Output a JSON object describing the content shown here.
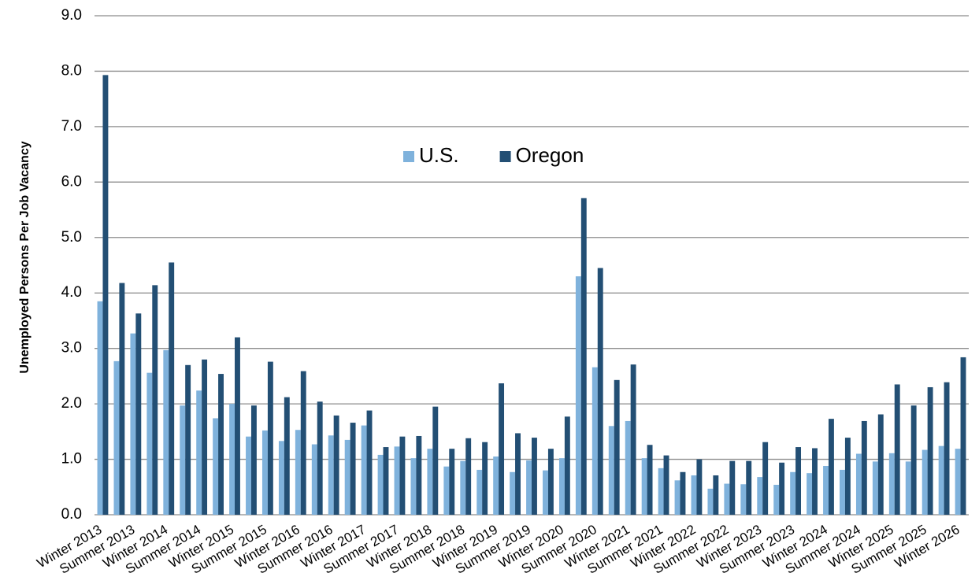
{
  "chart_data": {
    "type": "bar",
    "y_label": "Unemployed Persons Per Job Vacancy",
    "categories": [
      "Winter 2013",
      null,
      "Summer 2013",
      null,
      "Winter 2014",
      null,
      "Summer 2014",
      null,
      "Winter 2015",
      null,
      "Summer 2015",
      null,
      "Winter 2016",
      null,
      "Summer 2016",
      null,
      "Winter 2017",
      null,
      "Summer 2017",
      null,
      "Winter 2018",
      null,
      "Summer 2018",
      null,
      "Winter 2019",
      null,
      "Summer 2019",
      null,
      "Winter 2020",
      null,
      "Summer 2020",
      null,
      "Winter 2021",
      null,
      "Summer 2021",
      null,
      "Winter 2022",
      null,
      "Summer 2022",
      null,
      "Winter 2023",
      null,
      "Summer 2023",
      null,
      "Winter 2024",
      null,
      "Summer 2024",
      null,
      "Winter 2025",
      null,
      "Summer 2025",
      null,
      "Winter 2026"
    ],
    "series": [
      {
        "name": "U.S.",
        "color": "#7fb2dc",
        "values": [
          3.85,
          2.77,
          3.27,
          2.56,
          2.97,
          1.97,
          2.24,
          1.74,
          2.0,
          1.41,
          1.52,
          1.33,
          1.53,
          1.27,
          1.43,
          1.35,
          1.61,
          1.08,
          1.23,
          1.02,
          1.19,
          0.87,
          0.97,
          0.81,
          1.05,
          0.77,
          0.98,
          0.8,
          1.02,
          4.3,
          2.66,
          1.6,
          1.69,
          1.02,
          0.84,
          0.62,
          0.71,
          0.47,
          0.56,
          0.55,
          0.68,
          0.54,
          0.77,
          0.75,
          0.88,
          0.81,
          1.1,
          0.96,
          1.11,
          0.96,
          1.17,
          1.24,
          1.19
        ]
      },
      {
        "name": "Oregon",
        "color": "#234f74",
        "values": [
          7.93,
          4.18,
          3.63,
          4.14,
          4.55,
          2.7,
          2.8,
          2.54,
          3.2,
          1.97,
          2.76,
          2.12,
          2.59,
          2.04,
          1.79,
          1.66,
          1.88,
          1.22,
          1.41,
          1.42,
          1.95,
          1.19,
          1.38,
          1.31,
          2.37,
          1.47,
          1.39,
          1.19,
          1.77,
          5.71,
          4.45,
          2.43,
          2.71,
          1.26,
          1.07,
          0.77,
          1.0,
          0.71,
          0.97,
          0.97,
          1.31,
          0.94,
          1.22,
          1.2,
          1.73,
          1.39,
          1.69,
          1.81,
          2.35,
          1.97,
          2.3,
          2.39,
          2.84
        ]
      }
    ],
    "ylim": [
      0,
      9
    ],
    "yticks": [
      {
        "value": 0,
        "label": "0.0"
      },
      {
        "value": 1,
        "label": "1.0"
      },
      {
        "value": 2,
        "label": "2.0"
      },
      {
        "value": 3,
        "label": "3.0"
      },
      {
        "value": 4,
        "label": "4.0"
      },
      {
        "value": 5,
        "label": "5.0"
      },
      {
        "value": 6,
        "label": "6.0"
      },
      {
        "value": 7,
        "label": "7.0"
      },
      {
        "value": 8,
        "label": "8.0"
      },
      {
        "value": 9,
        "label": "9.0"
      }
    ],
    "grid": true,
    "legend": "center"
  }
}
